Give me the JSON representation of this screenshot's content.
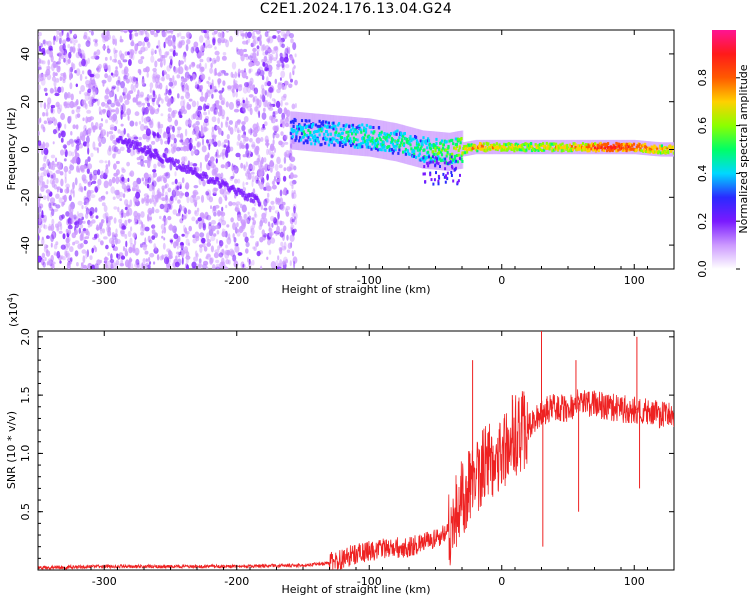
{
  "title": "C2E1.2024.176.13.04.G24",
  "colors": {
    "snr_line": "#ee2222",
    "scatter_base": "#7a1aff",
    "colormap": [
      "#ffffff",
      "#cc99ff",
      "#7a1aff",
      "#2a2aff",
      "#00d8ff",
      "#00ff66",
      "#8cff00",
      "#ffd000",
      "#ff5a00",
      "#ff1a1a",
      "#ff1493"
    ]
  },
  "chart_data": [
    {
      "type": "heatmap",
      "title": "",
      "xlabel": "Height of straight line (km)",
      "ylabel": "Frequency (Hz)",
      "xlim": [
        -350,
        130
      ],
      "ylim": [
        -50,
        50
      ],
      "x_ticks": [
        -300,
        -200,
        -100,
        0,
        100
      ],
      "y_ticks": [
        -40,
        -20,
        0,
        20,
        40
      ],
      "colorbar": {
        "label": "Normalized spectral amplitude",
        "range": [
          0,
          1
        ],
        "ticks": [
          "0.0",
          "0.2",
          "0.4",
          "0.6",
          "0.8"
        ]
      },
      "noise_region_x": [
        -350,
        -155
      ],
      "signal_ridge": [
        {
          "x": -160,
          "freq": 8,
          "amp": 0.35
        },
        {
          "x": -140,
          "freq": 7,
          "amp": 0.4
        },
        {
          "x": -120,
          "freq": 6,
          "amp": 0.4
        },
        {
          "x": -100,
          "freq": 5,
          "amp": 0.45
        },
        {
          "x": -80,
          "freq": 3,
          "amp": 0.45
        },
        {
          "x": -60,
          "freq": 0,
          "amp": 0.45
        },
        {
          "x": -40,
          "freq": -1,
          "amp": 0.55
        },
        {
          "x": -20,
          "freq": 1,
          "amp": 0.7
        },
        {
          "x": 0,
          "freq": 1,
          "amp": 0.65
        },
        {
          "x": 20,
          "freq": 1,
          "amp": 0.62
        },
        {
          "x": 40,
          "freq": 1,
          "amp": 0.65
        },
        {
          "x": 60,
          "freq": 1,
          "amp": 0.7
        },
        {
          "x": 80,
          "freq": 1,
          "amp": 0.88
        },
        {
          "x": 100,
          "freq": 1,
          "amp": 0.8
        },
        {
          "x": 120,
          "freq": 0,
          "amp": 0.7
        }
      ]
    },
    {
      "type": "line",
      "title": "",
      "xlabel": "Height of straight line (km)",
      "ylabel": "SNR (10 * v/v)",
      "y_multiplier": "(x10",
      "y_multiplier_exp": "4",
      "y_multiplier_close": ")",
      "xlim": [
        -350,
        130
      ],
      "ylim": [
        0,
        2.05
      ],
      "x_ticks": [
        -300,
        -200,
        -100,
        0,
        100
      ],
      "y_ticks": [
        "0.5",
        "1.0",
        "1.5",
        "2.0"
      ],
      "series": [
        {
          "x": [
            -350,
            -300,
            -250,
            -200,
            -150,
            -130,
            -110,
            -90,
            -70,
            -50,
            -40,
            -30,
            -20,
            -10,
            0,
            10,
            20,
            30,
            40,
            50,
            60,
            70,
            80,
            90,
            100,
            110,
            120,
            130
          ],
          "y": [
            0.02,
            0.03,
            0.03,
            0.03,
            0.04,
            0.06,
            0.14,
            0.18,
            0.2,
            0.26,
            0.35,
            0.6,
            0.8,
            0.95,
            1.0,
            1.15,
            1.22,
            1.35,
            1.4,
            1.38,
            1.45,
            1.42,
            1.4,
            1.38,
            1.38,
            1.35,
            1.33,
            1.32
          ]
        }
      ],
      "spikes": [
        {
          "x": -22,
          "y": 1.8
        },
        {
          "x": 8,
          "y": 1.5
        },
        {
          "x": 30,
          "y": 2.05
        },
        {
          "x": 31,
          "y": 0.2
        },
        {
          "x": 56,
          "y": 1.8
        },
        {
          "x": 58,
          "y": 0.5
        },
        {
          "x": 102,
          "y": 2.0
        },
        {
          "x": 104,
          "y": 0.7
        }
      ]
    }
  ]
}
